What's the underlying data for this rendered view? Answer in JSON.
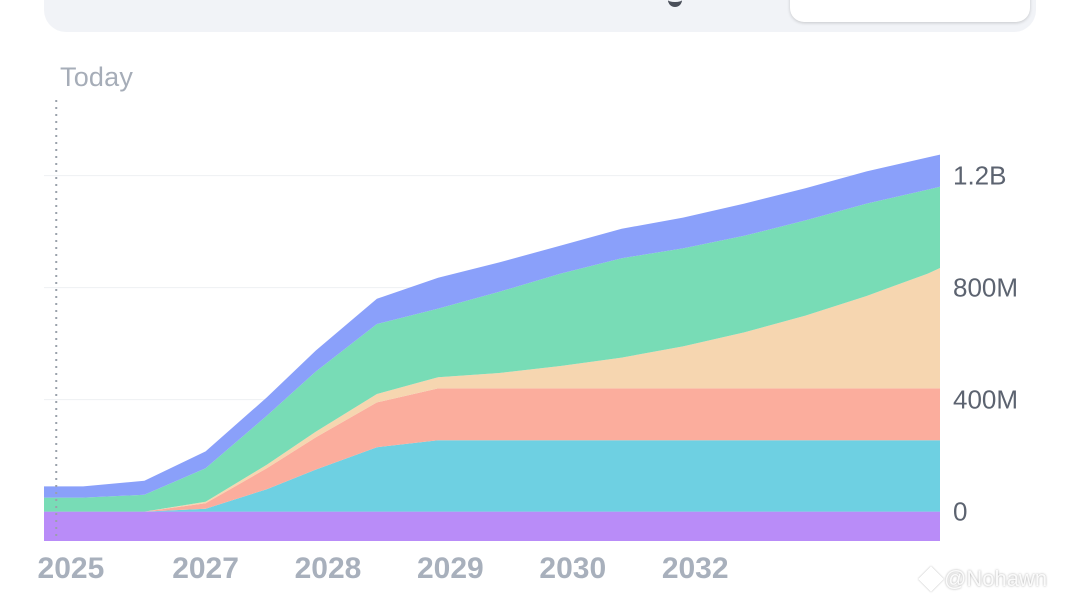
{
  "marker": {
    "today_label": "Today"
  },
  "watermark": {
    "text": "@Nohawn",
    "icon": "diamond-logo-icon"
  },
  "chart_data": {
    "type": "area",
    "stacked": true,
    "title": "",
    "xlabel": "",
    "ylabel": "",
    "x": [
      2024.78,
      2024.88,
      2025.1,
      2025.6,
      2026.1,
      2026.6,
      2027.0,
      2027.5,
      2028.0,
      2028.5,
      2029.0,
      2029.5,
      2030.0,
      2030.5,
      2031.0,
      2031.5,
      2032.0,
      2032.1
    ],
    "x_ticks": [
      {
        "label": "2025",
        "at": 2025.0
      },
      {
        "label": "2027",
        "at": 2026.1
      },
      {
        "label": "2028",
        "at": 2027.1
      },
      {
        "label": "2029",
        "at": 2028.1
      },
      {
        "label": "2030",
        "at": 2029.1
      },
      {
        "label": "2032",
        "at": 2030.1
      }
    ],
    "y_ticks": [
      {
        "label": "0",
        "value": 0
      },
      {
        "label": "400M",
        "value": 400000000
      },
      {
        "label": "800M",
        "value": 800000000
      },
      {
        "label": "1.2B",
        "value": 1200000000
      }
    ],
    "ylim": [
      -105000000,
      1470000000
    ],
    "today_x": 2024.88,
    "grid": true,
    "legend": "none",
    "series": [
      {
        "color": "#b98cf8",
        "base": -105000000,
        "values": [
          105000000,
          105000000,
          105000000,
          105000000,
          105000000,
          105000000,
          105000000,
          105000000,
          105000000,
          105000000,
          105000000,
          105000000,
          105000000,
          105000000,
          105000000,
          105000000,
          105000000,
          105000000
        ]
      },
      {
        "color": "#6ed0e2",
        "values": [
          0,
          0,
          0,
          0,
          10000000,
          80000000,
          150000000,
          230000000,
          255000000,
          255000000,
          255000000,
          255000000,
          255000000,
          255000000,
          255000000,
          255000000,
          255000000,
          255000000
        ]
      },
      {
        "color": "#fbad9d",
        "values": [
          0,
          0,
          0,
          0,
          20000000,
          75000000,
          115000000,
          160000000,
          185000000,
          185000000,
          185000000,
          185000000,
          185000000,
          185000000,
          185000000,
          185000000,
          185000000,
          185000000
        ]
      },
      {
        "color": "#f6d6b0",
        "values": [
          0,
          0,
          0,
          0,
          5000000,
          12000000,
          20000000,
          30000000,
          40000000,
          55000000,
          80000000,
          110000000,
          150000000,
          200000000,
          260000000,
          330000000,
          410000000,
          430000000
        ]
      },
      {
        "color": "#78dcb6",
        "values": [
          50000000,
          50000000,
          50000000,
          60000000,
          120000000,
          175000000,
          215000000,
          250000000,
          245000000,
          290000000,
          330000000,
          355000000,
          350000000,
          345000000,
          340000000,
          330000000,
          300000000,
          290000000
        ]
      },
      {
        "color": "#8aa0fa",
        "values": [
          40000000,
          40000000,
          40000000,
          50000000,
          60000000,
          66000000,
          75000000,
          90000000,
          110000000,
          105000000,
          100000000,
          105000000,
          110000000,
          115000000,
          115000000,
          115000000,
          115000000,
          115000000
        ]
      }
    ]
  }
}
